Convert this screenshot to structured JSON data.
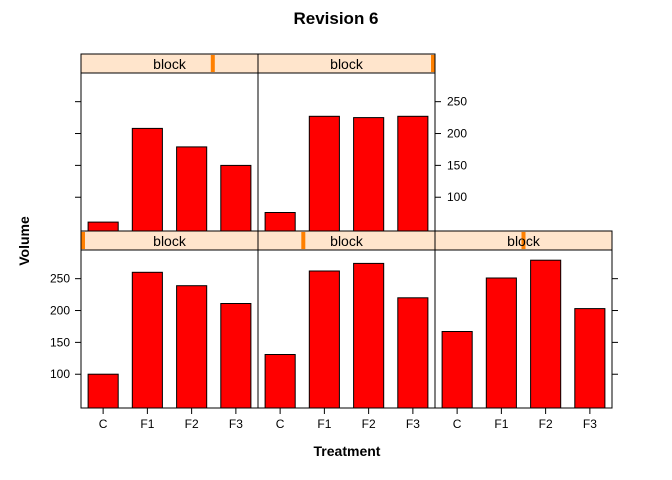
{
  "chart_data": {
    "type": "bar",
    "title": "Revision 6",
    "xlabel": "Treatment",
    "ylabel": "Volume",
    "categories": [
      "C",
      "F1",
      "F2",
      "F3"
    ],
    "ylim": [
      47,
      295
    ],
    "yticks": [
      100,
      150,
      200,
      250
    ],
    "colors": {
      "bar": "#ff0000",
      "strip_bg": "#ffe5cc",
      "strip_marker": "#ff8000"
    },
    "panels": [
      {
        "strip_label": "block",
        "level_fraction": 0.75,
        "values": [
          61,
          208,
          179,
          150
        ]
      },
      {
        "strip_label": "block",
        "level_fraction": 1.0,
        "values": [
          76,
          227,
          225,
          227
        ]
      },
      {
        "strip_label": "block",
        "level_fraction": 0.0,
        "values": [
          100,
          260,
          239,
          211
        ]
      },
      {
        "strip_label": "block",
        "level_fraction": 0.25,
        "values": [
          131,
          262,
          274,
          220
        ]
      },
      {
        "strip_label": "block",
        "level_fraction": 0.5,
        "values": [
          167,
          251,
          279,
          203
        ]
      }
    ]
  }
}
